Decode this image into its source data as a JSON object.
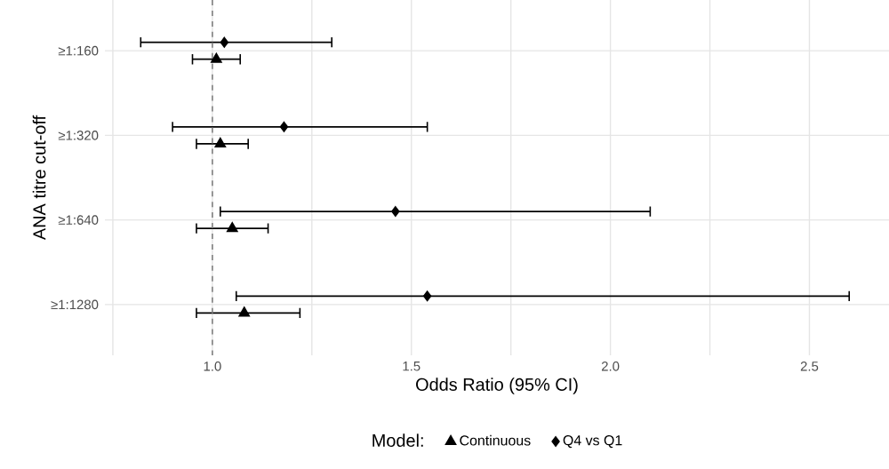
{
  "chart_data": {
    "type": "scatter",
    "orientation": "horizontal",
    "xlabel": "Odds Ratio (95% CI)",
    "ylabel": "ANA titre cut-off",
    "legend_title": "Model:",
    "categories": [
      "≥1:160",
      "≥1:320",
      "≥1:640",
      "≥1:1280"
    ],
    "series": [
      {
        "name": "Continuous",
        "color": "#000000",
        "marker": "triangle",
        "values": [
          1.01,
          1.02,
          1.05,
          1.08
        ],
        "errors": [
          [
            0.95,
            1.07
          ],
          [
            0.96,
            1.09
          ],
          [
            0.96,
            1.14
          ],
          [
            0.96,
            1.22
          ]
        ]
      },
      {
        "name": "Q4 vs Q1",
        "color": "#000000",
        "marker": "diamond",
        "values": [
          1.03,
          1.18,
          1.46,
          1.54
        ],
        "errors": [
          [
            0.82,
            1.3
          ],
          [
            0.9,
            1.54
          ],
          [
            1.02,
            2.1
          ],
          [
            1.06,
            2.6
          ]
        ]
      }
    ],
    "xlim": [
      0.73,
      2.7
    ],
    "xticks": [
      {
        "value": 0.75,
        "label": null
      },
      {
        "value": 1,
        "label": "1.0"
      },
      {
        "value": 1.25,
        "label": null
      },
      1.5,
      {
        "value": 1.75,
        "label": null
      },
      {
        "value": 2,
        "label": "2.0"
      },
      {
        "value": 2.25,
        "label": null
      },
      2.5
    ],
    "ref_lines": [
      {
        "axis": "x",
        "value": 1.0,
        "line_style": "dashed",
        "color": "#808080"
      }
    ],
    "grid": true,
    "legend": "bottom"
  }
}
